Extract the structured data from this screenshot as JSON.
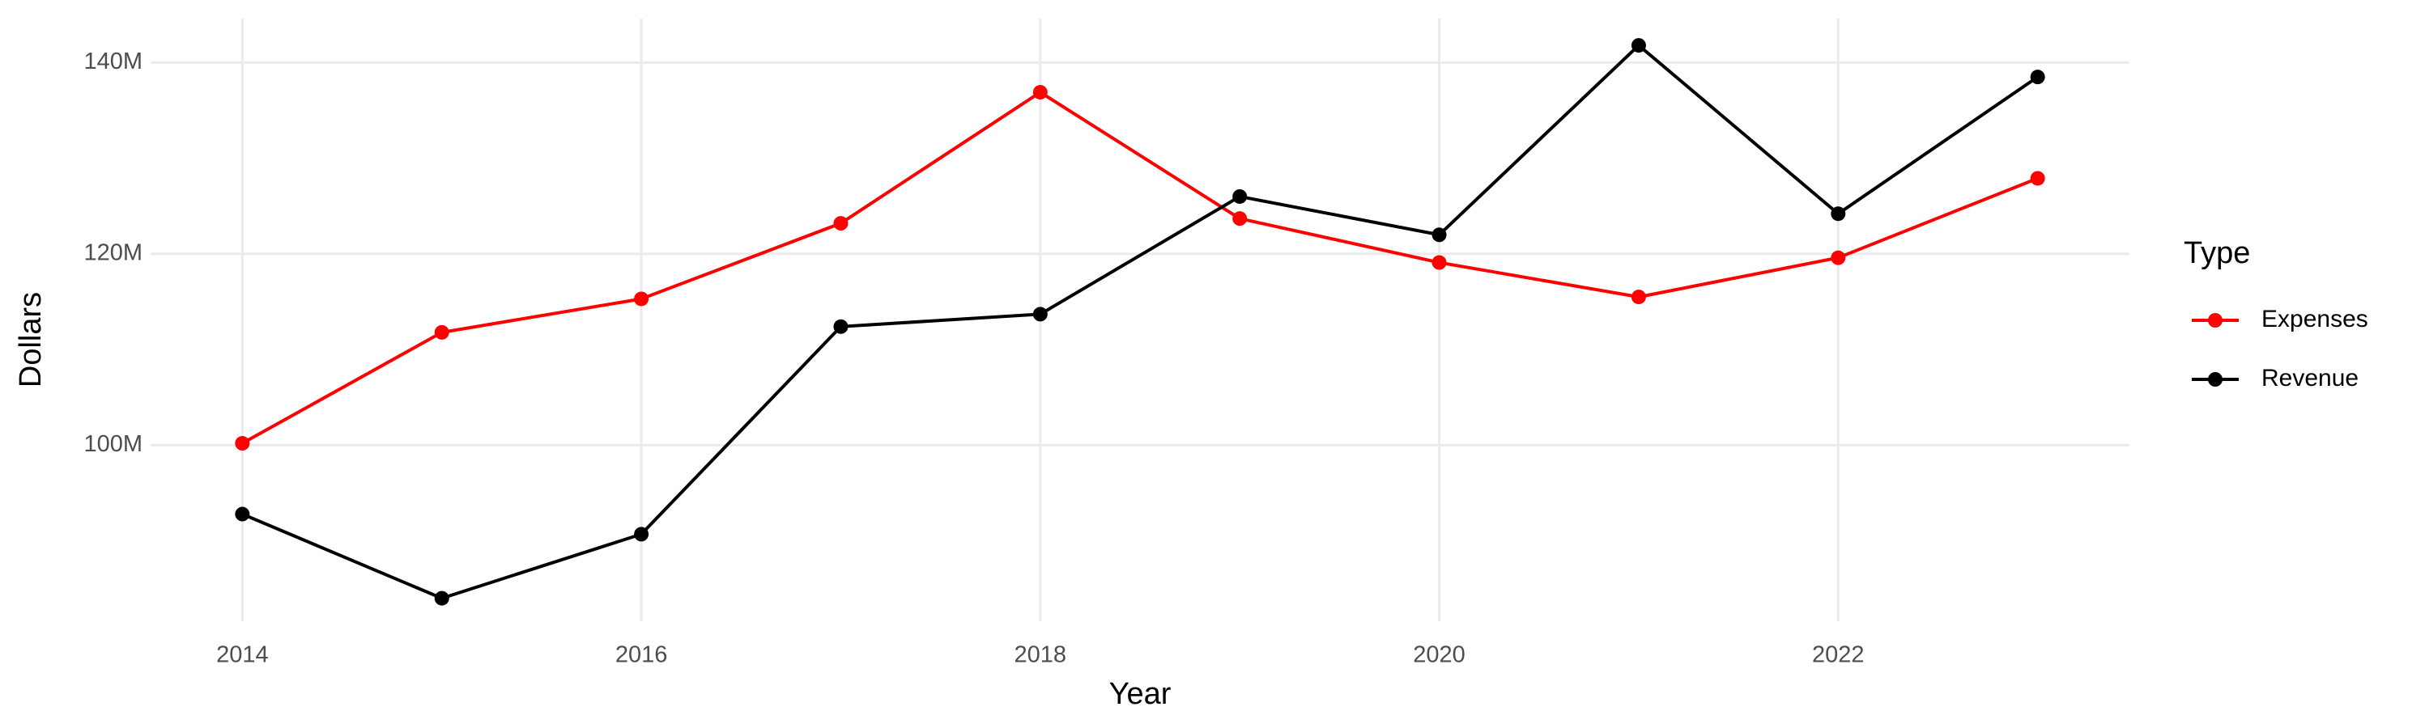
{
  "chart_data": {
    "type": "line",
    "x_label": "Year",
    "y_label": "Dollars",
    "legend_title": "Type",
    "x": [
      2014,
      2015,
      2016,
      2017,
      2018,
      2019,
      2020,
      2021,
      2022,
      2023
    ],
    "series": [
      {
        "name": "Expenses",
        "color": "#ff0000",
        "values": [
          100200000,
          111800000,
          115300000,
          123200000,
          136900000,
          123700000,
          119100000,
          115500000,
          119600000,
          127900000
        ]
      },
      {
        "name": "Revenue",
        "color": "#000000",
        "values": [
          92800000,
          84000000,
          90700000,
          112400000,
          113700000,
          126000000,
          122000000,
          141800000,
          124200000,
          138500000
        ]
      }
    ],
    "xlim": [
      2013.54,
      2023.46
    ],
    "xticks": [
      2014,
      2016,
      2018,
      2020,
      2022
    ],
    "ylim": [
      81600000,
      144600000
    ],
    "yticks": [
      {
        "value": 100000000,
        "label": "100M"
      },
      {
        "value": 120000000,
        "label": "120M"
      },
      {
        "value": 140000000,
        "label": "140M"
      }
    ],
    "grid": true,
    "legend": "right"
  }
}
